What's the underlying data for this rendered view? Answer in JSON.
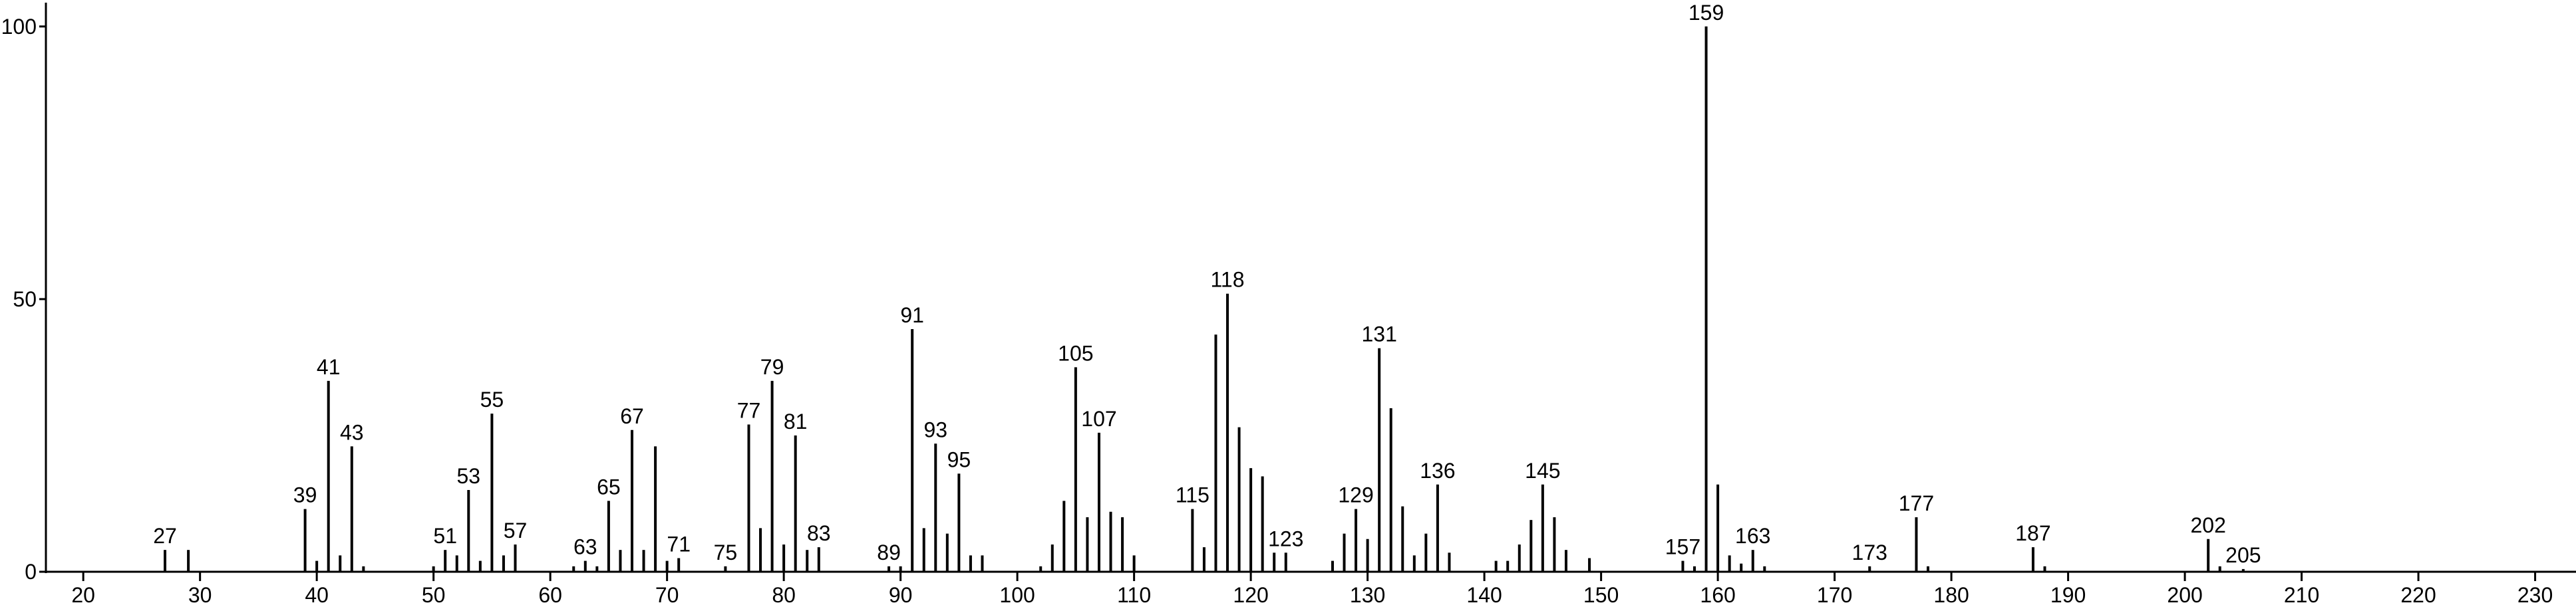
{
  "chart_data": {
    "type": "stem",
    "x": [
      27,
      29,
      39,
      40,
      41,
      42,
      43,
      44,
      50,
      51,
      52,
      53,
      54,
      55,
      56,
      57,
      62,
      63,
      64,
      65,
      66,
      67,
      68,
      69,
      70,
      71,
      75,
      77,
      78,
      79,
      80,
      81,
      82,
      83,
      89,
      90,
      91,
      92,
      93,
      94,
      95,
      96,
      97,
      102,
      103,
      104,
      105,
      106,
      107,
      108,
      109,
      110,
      115,
      116,
      117,
      118,
      119,
      120,
      121,
      122,
      123,
      127,
      128,
      129,
      130,
      131,
      132,
      133,
      134,
      135,
      136,
      137,
      141,
      142,
      143,
      144,
      145,
      146,
      147,
      149,
      157,
      158,
      159,
      160,
      161,
      162,
      163,
      164,
      173,
      177,
      178,
      187,
      188,
      202,
      203,
      205
    ],
    "values": [
      4,
      4,
      11.5,
      2,
      35,
      3,
      23,
      1,
      1,
      4,
      3,
      15,
      2,
      29,
      3,
      5,
      1,
      2,
      1,
      13,
      4,
      26,
      4,
      23,
      2,
      2.5,
      1,
      27,
      8,
      35,
      5,
      25,
      4,
      4.5,
      1,
      1,
      44.5,
      8,
      23.5,
      7,
      18,
      3,
      3,
      1,
      5,
      13,
      37.5,
      10,
      25.5,
      11,
      10,
      3,
      11.5,
      4.5,
      43.5,
      51,
      26.5,
      19,
      17.5,
      3.5,
      3.5,
      2,
      7,
      11.5,
      6,
      41,
      30,
      12,
      3,
      7,
      16,
      3.5,
      2,
      2,
      5,
      9.5,
      16,
      10,
      4,
      2.5,
      2,
      1,
      100,
      16,
      3,
      1.5,
      4,
      1,
      1,
      10,
      1,
      4.5,
      1,
      6,
      1,
      0.5
    ],
    "labels": [
      27,
      null,
      39,
      null,
      41,
      null,
      43,
      null,
      null,
      51,
      null,
      53,
      null,
      55,
      null,
      57,
      null,
      63,
      null,
      65,
      null,
      67,
      null,
      null,
      null,
      71,
      75,
      77,
      null,
      79,
      null,
      81,
      null,
      83,
      89,
      null,
      91,
      null,
      93,
      null,
      95,
      null,
      null,
      null,
      null,
      null,
      105,
      null,
      107,
      null,
      null,
      null,
      115,
      null,
      null,
      118,
      null,
      null,
      null,
      null,
      123,
      null,
      null,
      129,
      null,
      131,
      null,
      null,
      null,
      null,
      136,
      null,
      null,
      null,
      null,
      null,
      145,
      null,
      null,
      null,
      157,
      null,
      159,
      null,
      null,
      null,
      163,
      null,
      173,
      177,
      null,
      187,
      null,
      202,
      null,
      205
    ],
    "color": "#000000",
    "xlim": [
      16.8,
      233.5
    ],
    "xticks": [
      20,
      30,
      40,
      50,
      60,
      70,
      80,
      90,
      100,
      110,
      120,
      130,
      140,
      150,
      160,
      170,
      180,
      190,
      200,
      210,
      220,
      230
    ],
    "ylim": [
      0,
      104
    ],
    "yticks": [
      0,
      50,
      100
    ]
  }
}
